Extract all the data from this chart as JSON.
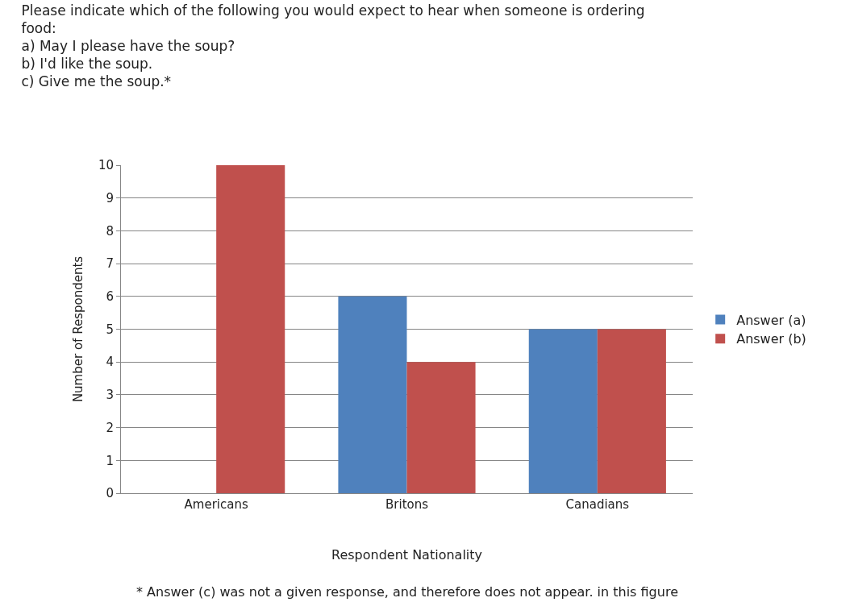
{
  "chart_data": {
    "type": "bar",
    "title": "Please indicate which of the following you would expect to hear when someone is ordering\nfood:\na) May I please have the soup?\nb) I'd like the soup.\nc) Give me the soup.*",
    "xlabel": "Respondent Nationality",
    "ylabel": "Number of Respondents",
    "categories": [
      "Americans",
      "Britons",
      "Canadians"
    ],
    "series": [
      {
        "name": "Answer (a)",
        "color": "#4f81bd",
        "values": [
          0,
          6,
          5
        ]
      },
      {
        "name": "Answer (b)",
        "color": "#c0504d",
        "values": [
          10,
          4,
          5
        ]
      }
    ],
    "ylim": [
      0,
      10
    ],
    "yticks": [
      0,
      1,
      2,
      3,
      4,
      5,
      6,
      7,
      8,
      9,
      10
    ],
    "grid": "y",
    "legend": "right",
    "annotations": [
      "* Answer (c) was not a given response, and therefore does not appear. in this figure"
    ]
  }
}
